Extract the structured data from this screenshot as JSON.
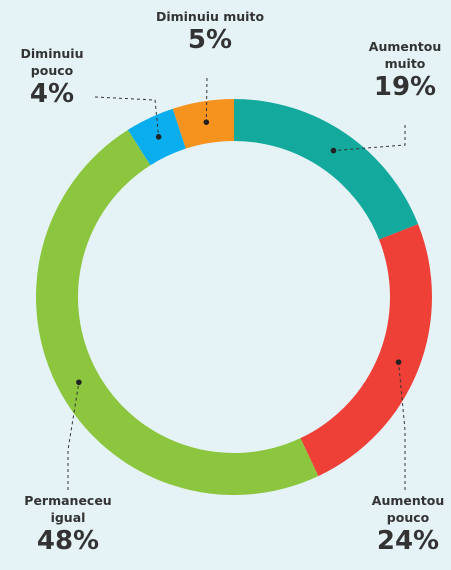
{
  "chart_data": {
    "type": "donut",
    "categories": [
      "Aumentou muito",
      "Aumentou pouco",
      "Permaneceu igual",
      "Diminuiu pouco",
      "Diminuiu muito"
    ],
    "values": [
      19,
      24,
      48,
      4,
      5
    ],
    "value_labels": [
      "19%",
      "24%",
      "48%",
      "4%",
      "5%"
    ],
    "colors": [
      "#14a99d",
      "#ef4038",
      "#8cc63f",
      "#0aaeee",
      "#f6921e"
    ]
  }
}
